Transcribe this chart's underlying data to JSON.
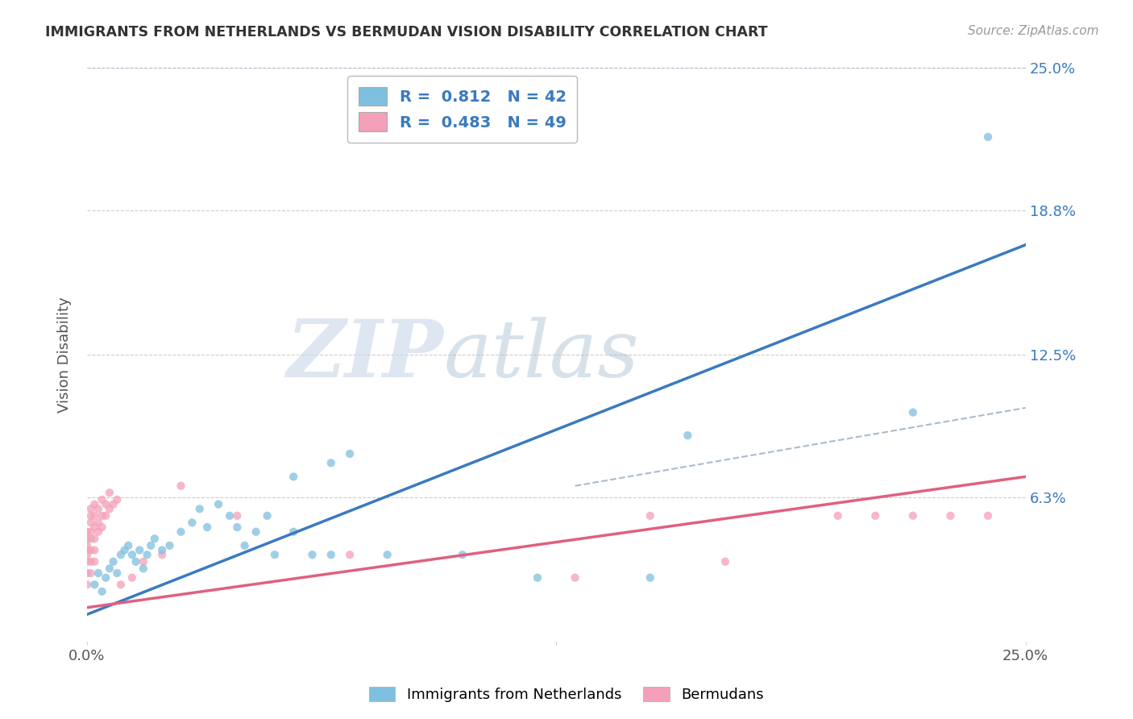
{
  "title": "IMMIGRANTS FROM NETHERLANDS VS BERMUDAN VISION DISABILITY CORRELATION CHART",
  "source": "Source: ZipAtlas.com",
  "ylabel": "Vision Disability",
  "ytick_labels": [
    "",
    "6.3%",
    "12.5%",
    "18.8%",
    "25.0%"
  ],
  "ytick_values": [
    0.0,
    0.063,
    0.125,
    0.188,
    0.25
  ],
  "xmin": 0.0,
  "xmax": 0.25,
  "ymin": 0.0,
  "ymax": 0.25,
  "color_blue": "#7fbfdf",
  "color_pink": "#f4a0b8",
  "color_blue_line": "#3a7abf",
  "color_pink_line": "#e06080",
  "watermark_zip": "ZIP",
  "watermark_atlas": "atlas",
  "blue_scatter": [
    [
      0.002,
      0.025
    ],
    [
      0.003,
      0.03
    ],
    [
      0.004,
      0.022
    ],
    [
      0.005,
      0.028
    ],
    [
      0.006,
      0.032
    ],
    [
      0.007,
      0.035
    ],
    [
      0.008,
      0.03
    ],
    [
      0.009,
      0.038
    ],
    [
      0.01,
      0.04
    ],
    [
      0.011,
      0.042
    ],
    [
      0.012,
      0.038
    ],
    [
      0.013,
      0.035
    ],
    [
      0.014,
      0.04
    ],
    [
      0.015,
      0.032
    ],
    [
      0.016,
      0.038
    ],
    [
      0.017,
      0.042
    ],
    [
      0.018,
      0.045
    ],
    [
      0.02,
      0.04
    ],
    [
      0.022,
      0.042
    ],
    [
      0.025,
      0.048
    ],
    [
      0.028,
      0.052
    ],
    [
      0.03,
      0.058
    ],
    [
      0.032,
      0.05
    ],
    [
      0.035,
      0.06
    ],
    [
      0.038,
      0.055
    ],
    [
      0.04,
      0.05
    ],
    [
      0.042,
      0.042
    ],
    [
      0.045,
      0.048
    ],
    [
      0.048,
      0.055
    ],
    [
      0.05,
      0.038
    ],
    [
      0.055,
      0.048
    ],
    [
      0.06,
      0.038
    ],
    [
      0.065,
      0.038
    ],
    [
      0.08,
      0.038
    ],
    [
      0.1,
      0.038
    ],
    [
      0.12,
      0.028
    ],
    [
      0.15,
      0.028
    ],
    [
      0.055,
      0.072
    ],
    [
      0.065,
      0.078
    ],
    [
      0.07,
      0.082
    ],
    [
      0.16,
      0.09
    ],
    [
      0.22,
      0.1
    ],
    [
      0.24,
      0.22
    ]
  ],
  "pink_scatter": [
    [
      0.0,
      0.025
    ],
    [
      0.0,
      0.03
    ],
    [
      0.0,
      0.035
    ],
    [
      0.0,
      0.04
    ],
    [
      0.0,
      0.042
    ],
    [
      0.0,
      0.045
    ],
    [
      0.0,
      0.048
    ],
    [
      0.0,
      0.038
    ],
    [
      0.001,
      0.03
    ],
    [
      0.001,
      0.035
    ],
    [
      0.001,
      0.04
    ],
    [
      0.001,
      0.045
    ],
    [
      0.001,
      0.048
    ],
    [
      0.001,
      0.052
    ],
    [
      0.001,
      0.055
    ],
    [
      0.001,
      0.058
    ],
    [
      0.002,
      0.04
    ],
    [
      0.002,
      0.045
    ],
    [
      0.002,
      0.05
    ],
    [
      0.002,
      0.055
    ],
    [
      0.002,
      0.06
    ],
    [
      0.002,
      0.035
    ],
    [
      0.003,
      0.048
    ],
    [
      0.003,
      0.052
    ],
    [
      0.003,
      0.058
    ],
    [
      0.004,
      0.05
    ],
    [
      0.004,
      0.055
    ],
    [
      0.004,
      0.062
    ],
    [
      0.005,
      0.055
    ],
    [
      0.005,
      0.06
    ],
    [
      0.006,
      0.058
    ],
    [
      0.006,
      0.065
    ],
    [
      0.007,
      0.06
    ],
    [
      0.008,
      0.062
    ],
    [
      0.009,
      0.025
    ],
    [
      0.012,
      0.028
    ],
    [
      0.015,
      0.035
    ],
    [
      0.02,
      0.038
    ],
    [
      0.025,
      0.068
    ],
    [
      0.04,
      0.055
    ],
    [
      0.07,
      0.038
    ],
    [
      0.13,
      0.028
    ],
    [
      0.15,
      0.055
    ],
    [
      0.17,
      0.035
    ],
    [
      0.2,
      0.055
    ],
    [
      0.21,
      0.055
    ],
    [
      0.22,
      0.055
    ],
    [
      0.23,
      0.055
    ],
    [
      0.24,
      0.055
    ]
  ],
  "blue_line_x": [
    0.0,
    0.25
  ],
  "blue_line_y": [
    0.012,
    0.173
  ],
  "pink_line_x": [
    0.0,
    0.25
  ],
  "pink_line_y": [
    0.015,
    0.072
  ],
  "dashed_line_x": [
    0.13,
    0.25
  ],
  "dashed_line_y": [
    0.068,
    0.102
  ]
}
